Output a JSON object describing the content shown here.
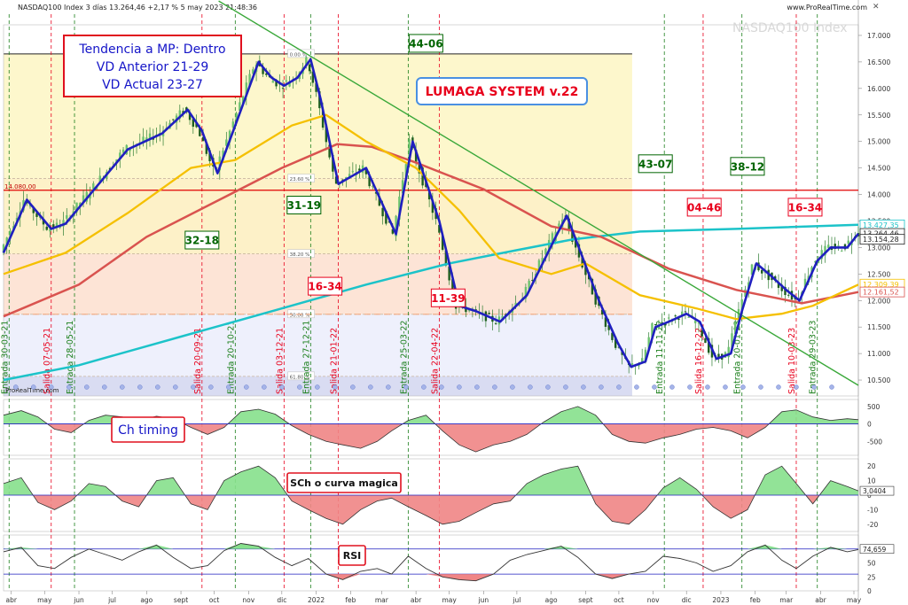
{
  "header": {
    "instrument": "NASDAQ100 Index 3 días 13.264,46 +2,17 % 5 may 2023 21:48:36",
    "site": "www.ProRealTime.com",
    "watermark": "NASDAQ100 Index"
  },
  "colors": {
    "candle": "#2e7d32",
    "price_line": "#1f1fbf",
    "ma_yellow": "#f5c000",
    "ma_red": "#d9534f",
    "ma_cyan": "#1cc3c9",
    "trendline": "#3aa83a",
    "osc_pos": "#86e08c",
    "osc_neg": "#f08585",
    "red_text": "#e8001c",
    "green_text": "#006400",
    "blue_text": "#1515c8"
  },
  "annotations": {
    "tendencia": [
      "Tendencia a MP: Dentro",
      "VD Anterior 21-29",
      "VD Actual 23-27"
    ],
    "lumaga": "LUMAGA SYSTEM v.22",
    "ch_timing": "Ch timing",
    "sch": "SCh o curva magica",
    "rsi": "RSI",
    "fib_levels": [
      "0.00 %",
      "23.60 %",
      "38.20 %",
      "50.00 %",
      "61.80 %"
    ],
    "hline_label": "14.080,00",
    "prorealtime": "ProRealTime.com"
  },
  "boxes": [
    {
      "text": "44-06",
      "color": "green",
      "date": "2022-04-10",
      "price": 16850
    },
    {
      "text": "31-19",
      "color": "green",
      "date": "2021-12-21",
      "price": 13800
    },
    {
      "text": "32-18",
      "color": "green",
      "date": "2021-09-20",
      "price": 13140
    },
    {
      "text": "16-34",
      "color": "red",
      "date": "2022-01-09",
      "price": 12270
    },
    {
      "text": "11-39",
      "color": "red",
      "date": "2022-04-30",
      "price": 12050
    },
    {
      "text": "43-07",
      "color": "green",
      "date": "2022-11-03",
      "price": 14580
    },
    {
      "text": "38-12",
      "color": "green",
      "date": "2023-01-25",
      "price": 14530
    },
    {
      "text": "04-46",
      "color": "red",
      "date": "2022-12-17",
      "price": 13760
    },
    {
      "text": "16-34",
      "color": "red",
      "date": "2023-03-18",
      "price": 13760
    }
  ],
  "vlines": [
    {
      "date": "2021-03-30",
      "label": "Entrada 30-03-21",
      "color": "green"
    },
    {
      "date": "2021-05-07",
      "label": "Salida 07-05-21",
      "color": "red"
    },
    {
      "date": "2021-05-28",
      "label": "Entrada 28-05-21",
      "color": "green"
    },
    {
      "date": "2021-09-20",
      "label": "Salida 20-09-21",
      "color": "red"
    },
    {
      "date": "2021-10-20",
      "label": "Entrada 20-10-21",
      "color": "green"
    },
    {
      "date": "2021-12-03",
      "label": "Salida 03-12-21",
      "color": "red"
    },
    {
      "date": "2021-12-27",
      "label": "Entrada 27-12-21",
      "color": "green"
    },
    {
      "date": "2022-01-21",
      "label": "Salida 21-01-22",
      "color": "red"
    },
    {
      "date": "2022-03-25",
      "label": "Entrada 25-03-22",
      "color": "green"
    },
    {
      "date": "2022-04-22",
      "label": "Salida 22-04-22",
      "color": "red"
    },
    {
      "date": "2022-11-11",
      "label": "Entrada 11-11-22",
      "color": "green"
    },
    {
      "date": "2022-12-16",
      "label": "Salida 16-12-22",
      "color": "red"
    },
    {
      "date": "2023-01-20",
      "label": "Entrada 20-01-23",
      "color": "green"
    },
    {
      "date": "2023-03-10",
      "label": "Salida 10-03-23",
      "color": "red"
    },
    {
      "date": "2023-03-29",
      "label": "Entrada 29-03-23",
      "color": "green"
    }
  ],
  "chart_data": {
    "type": "line",
    "x_axis": {
      "start": "2021-03-25",
      "end": "2023-05-05",
      "tick_labels": [
        "abr",
        "may",
        "jun",
        "jul",
        "ago",
        "sept",
        "oct",
        "nov",
        "dic",
        "2022",
        "feb",
        "mar",
        "abr",
        "may",
        "jun",
        "jul",
        "ago",
        "sept",
        "oct",
        "nov",
        "dic",
        "2023",
        "feb",
        "mar",
        "abr",
        "may"
      ],
      "tick_dates": [
        "2021-04-01",
        "2021-05-01",
        "2021-06-01",
        "2021-07-01",
        "2021-08-01",
        "2021-09-01",
        "2021-10-01",
        "2021-11-01",
        "2021-12-01",
        "2022-01-01",
        "2022-02-01",
        "2022-03-01",
        "2022-04-01",
        "2022-05-01",
        "2022-06-01",
        "2022-07-01",
        "2022-08-01",
        "2022-09-01",
        "2022-10-01",
        "2022-11-01",
        "2022-12-01",
        "2023-01-01",
        "2023-02-01",
        "2023-03-01",
        "2023-04-01",
        "2023-05-01"
      ]
    },
    "price_panel": {
      "ylim": [
        10200,
        17200
      ],
      "y_ticks": [
        "10.500",
        "11.000",
        "11.500",
        "12.000",
        "12.500",
        "13.000",
        "13.500",
        "14.000",
        "14.500",
        "15.000",
        "15.500",
        "16.000",
        "16.500",
        "17.000"
      ],
      "y_tick_values": [
        10500,
        11000,
        11500,
        12000,
        12500,
        13000,
        13500,
        14000,
        14500,
        15000,
        15500,
        16000,
        16500,
        17000
      ],
      "value_labels": [
        {
          "text": "13.427,35",
          "value": 13427,
          "color": "#1cc3c9"
        },
        {
          "text": "13.264,46",
          "value": 13264,
          "color": "#222222"
        },
        {
          "text": "13.154,28",
          "value": 13154,
          "color": "#222222"
        },
        {
          "text": "12.309,39",
          "value": 12309,
          "color": "#f5c000"
        },
        {
          "text": "12.161,52",
          "value": 12161,
          "color": "#d9534f"
        }
      ],
      "hline": 14080,
      "fib": {
        "top": 16650,
        "levels": [
          16650,
          14300,
          12880,
          11740,
          10570
        ]
      },
      "series": [
        {
          "key": "price",
          "dates": [
            "2021-03-25",
            "2021-04-15",
            "2021-05-07",
            "2021-05-20",
            "2021-06-15",
            "2021-07-15",
            "2021-08-15",
            "2021-09-07",
            "2021-09-20",
            "2021-10-04",
            "2021-10-20",
            "2021-11-10",
            "2021-11-22",
            "2021-12-03",
            "2021-12-15",
            "2021-12-27",
            "2022-01-05",
            "2022-01-21",
            "2022-02-15",
            "2022-03-14",
            "2022-03-29",
            "2022-04-22",
            "2022-05-10",
            "2022-05-25",
            "2022-06-16",
            "2022-07-10",
            "2022-08-05",
            "2022-08-15",
            "2022-09-13",
            "2022-09-30",
            "2022-10-12",
            "2022-10-25",
            "2022-11-03",
            "2022-11-15",
            "2022-12-01",
            "2022-12-13",
            "2022-12-28",
            "2023-01-10",
            "2023-01-20",
            "2023-02-02",
            "2023-02-16",
            "2023-03-01",
            "2023-03-13",
            "2023-03-29",
            "2023-04-10",
            "2023-04-25",
            "2023-05-05"
          ],
          "values": [
            12900,
            13900,
            13350,
            13450,
            14100,
            14850,
            15150,
            15600,
            15200,
            14400,
            15300,
            16500,
            16200,
            16050,
            16200,
            16550,
            15800,
            14200,
            14500,
            13250,
            15000,
            13500,
            11900,
            11800,
            11600,
            12100,
            13200,
            13600,
            12000,
            11200,
            10750,
            10850,
            11500,
            11600,
            11750,
            11600,
            10900,
            11000,
            11800,
            12700,
            12450,
            12200,
            12000,
            12750,
            13000,
            13000,
            13260
          ]
        },
        {
          "key": "ma50",
          "dates": [
            "2021-03-25",
            "2021-05-20",
            "2021-07-15",
            "2021-09-10",
            "2021-10-20",
            "2021-12-10",
            "2022-01-10",
            "2022-02-15",
            "2022-04-01",
            "2022-05-10",
            "2022-06-15",
            "2022-08-01",
            "2022-09-01",
            "2022-10-20",
            "2022-12-10",
            "2023-01-15",
            "2023-02-25",
            "2023-03-25",
            "2023-05-05"
          ],
          "values": [
            12500,
            12900,
            13650,
            14500,
            14650,
            15300,
            15500,
            15000,
            14500,
            13700,
            12800,
            12500,
            12700,
            12100,
            11850,
            11650,
            11750,
            11900,
            12300
          ]
        },
        {
          "key": "ma100",
          "dates": [
            "2021-03-25",
            "2021-06-01",
            "2021-08-01",
            "2021-10-01",
            "2021-12-01",
            "2022-01-20",
            "2022-02-20",
            "2022-04-01",
            "2022-06-01",
            "2022-08-01",
            "2022-09-15",
            "2022-11-15",
            "2023-01-15",
            "2023-03-15",
            "2023-05-05"
          ],
          "values": [
            11700,
            12300,
            13200,
            13850,
            14500,
            14950,
            14900,
            14600,
            14100,
            13400,
            13200,
            12600,
            12200,
            11950,
            12160
          ]
        },
        {
          "key": "ma200",
          "dates": [
            "2021-03-25",
            "2021-06-01",
            "2021-09-01",
            "2021-12-01",
            "2022-02-15",
            "2022-05-01",
            "2022-07-01",
            "2022-08-20",
            "2022-10-20",
            "2023-01-15",
            "2023-05-05"
          ],
          "values": [
            10500,
            10780,
            11320,
            11850,
            12300,
            12700,
            12950,
            13150,
            13300,
            13350,
            13430
          ]
        },
        {
          "key": "trend",
          "dates": [
            "2021-10-05",
            "2023-05-05"
          ],
          "values": [
            17650,
            10400
          ]
        }
      ]
    },
    "ch_timing": {
      "ylim": [
        -900,
        700
      ],
      "y_ticks": [
        "500",
        "0",
        "-500"
      ],
      "y_tick_values": [
        500,
        0,
        -500
      ],
      "dates": [
        "2021-03-25",
        "2021-04-10",
        "2021-04-25",
        "2021-05-10",
        "2021-05-25",
        "2021-06-10",
        "2021-06-25",
        "2021-07-10",
        "2021-07-25",
        "2021-08-10",
        "2021-08-25",
        "2021-09-10",
        "2021-09-25",
        "2021-10-10",
        "2021-10-25",
        "2021-11-10",
        "2021-11-25",
        "2021-12-10",
        "2021-12-25",
        "2022-01-10",
        "2022-01-25",
        "2022-02-10",
        "2022-02-25",
        "2022-03-10",
        "2022-03-25",
        "2022-04-10",
        "2022-04-25",
        "2022-05-10",
        "2022-05-25",
        "2022-06-10",
        "2022-06-25",
        "2022-07-10",
        "2022-07-25",
        "2022-08-10",
        "2022-08-25",
        "2022-09-10",
        "2022-09-25",
        "2022-10-10",
        "2022-10-25",
        "2022-11-10",
        "2022-11-25",
        "2022-12-10",
        "2022-12-25",
        "2023-01-10",
        "2023-01-25",
        "2023-02-10",
        "2023-02-25",
        "2023-03-10",
        "2023-03-25",
        "2023-04-10",
        "2023-04-25",
        "2023-05-05"
      ],
      "values": [
        250,
        380,
        200,
        -150,
        -250,
        100,
        250,
        200,
        100,
        220,
        150,
        -100,
        -300,
        -100,
        350,
        420,
        280,
        -50,
        -300,
        -500,
        -600,
        -700,
        -500,
        -200,
        100,
        250,
        -200,
        -600,
        -800,
        -600,
        -500,
        -300,
        50,
        350,
        500,
        250,
        -300,
        -500,
        -550,
        -400,
        -300,
        -150,
        -100,
        -200,
        -400,
        -100,
        350,
        400,
        200,
        100,
        150,
        120
      ]
    },
    "sch": {
      "ylim": [
        -25,
        25
      ],
      "y_ticks": [
        "20",
        "10",
        "0",
        "-10",
        "-20"
      ],
      "y_tick_values": [
        20,
        10,
        0,
        -10,
        -20
      ],
      "value_label": "3,0404",
      "dates": [
        "2021-03-25",
        "2021-04-10",
        "2021-04-25",
        "2021-05-10",
        "2021-05-25",
        "2021-06-10",
        "2021-06-25",
        "2021-07-10",
        "2021-07-25",
        "2021-08-10",
        "2021-08-25",
        "2021-09-10",
        "2021-09-25",
        "2021-10-10",
        "2021-10-25",
        "2021-11-10",
        "2021-11-25",
        "2021-12-10",
        "2021-12-25",
        "2022-01-10",
        "2022-01-25",
        "2022-02-10",
        "2022-02-25",
        "2022-03-10",
        "2022-03-25",
        "2022-04-10",
        "2022-04-25",
        "2022-05-10",
        "2022-05-25",
        "2022-06-10",
        "2022-06-25",
        "2022-07-10",
        "2022-07-25",
        "2022-08-10",
        "2022-08-25",
        "2022-09-10",
        "2022-09-25",
        "2022-10-10",
        "2022-10-25",
        "2022-11-10",
        "2022-11-25",
        "2022-12-10",
        "2022-12-25",
        "2023-01-10",
        "2023-01-25",
        "2023-02-10",
        "2023-02-25",
        "2023-03-10",
        "2023-03-25",
        "2023-04-10",
        "2023-04-25",
        "2023-05-05"
      ],
      "values": [
        8,
        12,
        -5,
        -10,
        -4,
        8,
        6,
        -4,
        -8,
        10,
        12,
        -6,
        -10,
        10,
        16,
        20,
        12,
        -4,
        -10,
        -16,
        -20,
        -10,
        -4,
        -2,
        -8,
        -14,
        -20,
        -18,
        -12,
        -6,
        -4,
        8,
        14,
        18,
        20,
        -6,
        -18,
        -20,
        -10,
        5,
        12,
        4,
        -8,
        -16,
        -10,
        14,
        20,
        8,
        -6,
        10,
        6,
        3
      ]
    },
    "rsi": {
      "ylim": [
        0,
        100
      ],
      "y_ticks": [
        "50",
        "25",
        "0"
      ],
      "y_tick_values": [
        50,
        25,
        0
      ],
      "value_label": "74,659",
      "hlines": [
        75,
        30
      ],
      "dates": [
        "2021-03-25",
        "2021-04-10",
        "2021-04-25",
        "2021-05-10",
        "2021-05-25",
        "2021-06-10",
        "2021-06-25",
        "2021-07-10",
        "2021-07-25",
        "2021-08-10",
        "2021-08-25",
        "2021-09-10",
        "2021-09-25",
        "2021-10-10",
        "2021-10-25",
        "2021-11-10",
        "2021-11-25",
        "2021-12-10",
        "2021-12-25",
        "2022-01-10",
        "2022-01-25",
        "2022-02-10",
        "2022-02-25",
        "2022-03-10",
        "2022-03-25",
        "2022-04-10",
        "2022-04-25",
        "2022-05-10",
        "2022-05-25",
        "2022-06-10",
        "2022-06-25",
        "2022-07-10",
        "2022-07-25",
        "2022-08-10",
        "2022-08-25",
        "2022-09-10",
        "2022-09-25",
        "2022-10-10",
        "2022-10-25",
        "2022-11-10",
        "2022-11-25",
        "2022-12-10",
        "2022-12-25",
        "2023-01-10",
        "2023-01-25",
        "2023-02-10",
        "2023-02-25",
        "2023-03-10",
        "2023-03-25",
        "2023-04-10",
        "2023-04-25",
        "2023-05-05"
      ],
      "values": [
        70,
        78,
        45,
        40,
        60,
        75,
        65,
        55,
        70,
        82,
        60,
        40,
        45,
        72,
        85,
        80,
        60,
        45,
        58,
        30,
        20,
        35,
        40,
        30,
        62,
        40,
        25,
        20,
        18,
        30,
        55,
        65,
        72,
        80,
        60,
        30,
        22,
        30,
        35,
        62,
        58,
        50,
        35,
        45,
        70,
        82,
        55,
        40,
        62,
        78,
        70,
        74
      ]
    }
  }
}
